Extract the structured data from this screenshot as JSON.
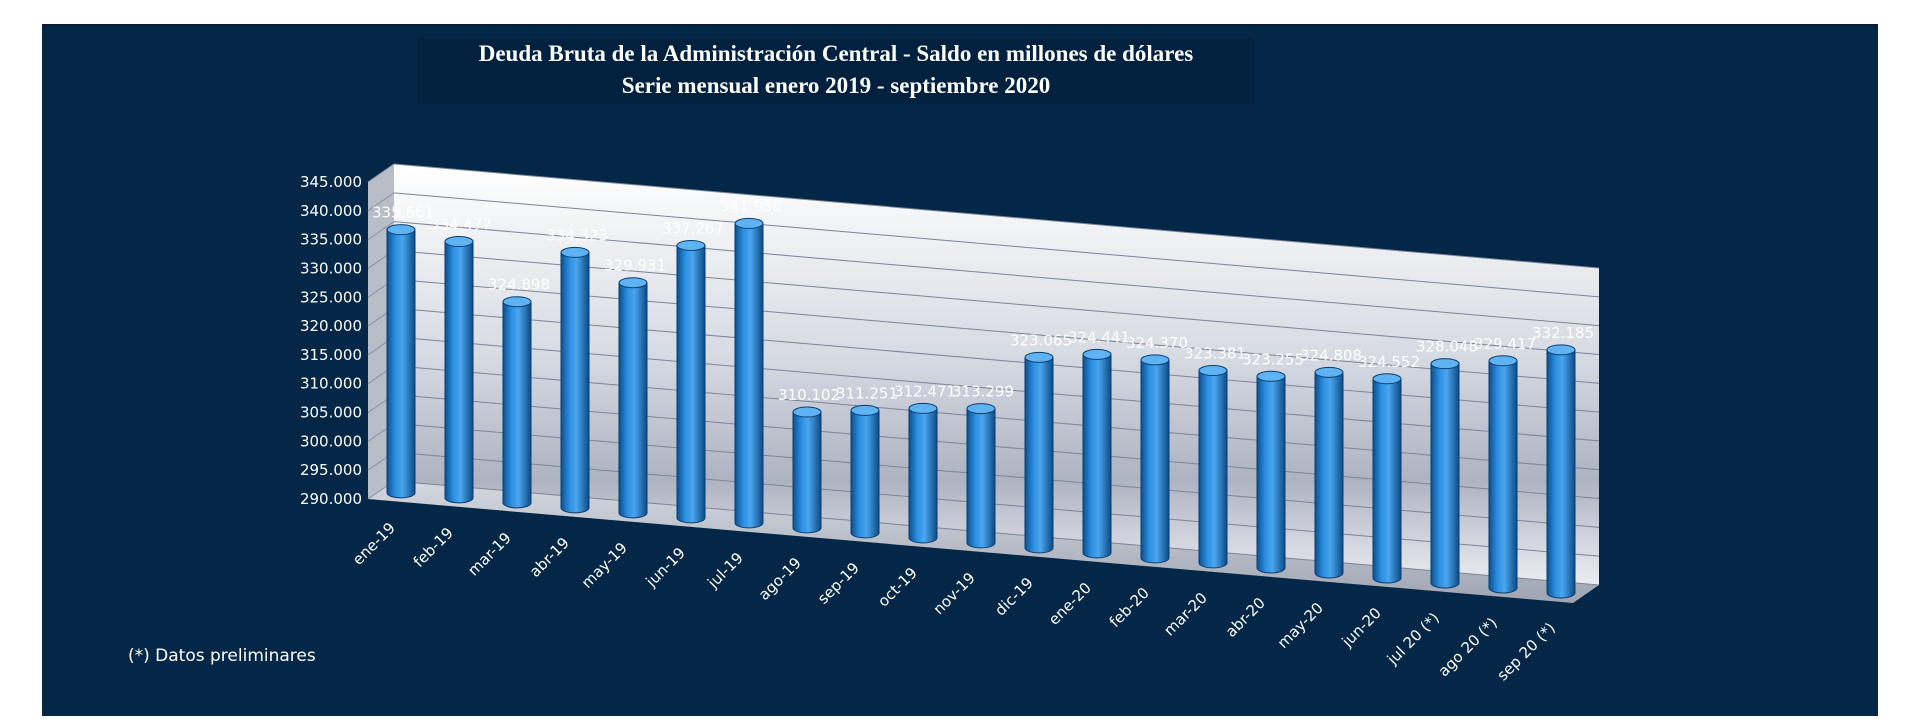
{
  "chart_data": {
    "type": "bar",
    "title": "Deuda Bruta de la Administración Central - Saldo en millones de dólares",
    "subtitle": "Serie mensual enero 2019 - septiembre 2020",
    "categories": [
      "ene-19",
      "feb-19",
      "mar-19",
      "abr-19",
      "may-19",
      "jun-19",
      "jul-19",
      "ago-19",
      "sep-19",
      "oct-19",
      "nov-19",
      "dic-19",
      "ene-20",
      "feb-20",
      "mar-20",
      "abr-20",
      "may-20",
      "jun-20",
      "jul 20 (*)",
      "ago 20 (*)",
      "sep 20 (*)"
    ],
    "values": [
      335661,
      334477,
      324898,
      334323,
      329931,
      337267,
      341958,
      310102,
      311251,
      312471,
      313299,
      323065,
      324441,
      324370,
      323381,
      323255,
      324808,
      324552,
      328048,
      329417,
      332185
    ],
    "value_labels": [
      "335.661",
      "334.477",
      "324.898",
      "334.323",
      "329.931",
      "337.267",
      "341.958",
      "310.102",
      "311.251",
      "312.471",
      "313.299",
      "323.065",
      "324.441",
      "324.370",
      "323.381",
      "323.255",
      "324.808",
      "324.552",
      "328.048",
      "329.417",
      "332.185"
    ],
    "ylim": [
      290000,
      345000
    ],
    "yticks": [
      "290.000",
      "295.000",
      "300.000",
      "305.000",
      "310.000",
      "315.000",
      "320.000",
      "325.000",
      "330.000",
      "335.000",
      "340.000",
      "345.000"
    ],
    "grid": true,
    "colors": {
      "bar": "#1f7fd0",
      "background": "#042747",
      "wall": "#eef0f5"
    }
  },
  "footnote": "(*) Datos preliminares"
}
